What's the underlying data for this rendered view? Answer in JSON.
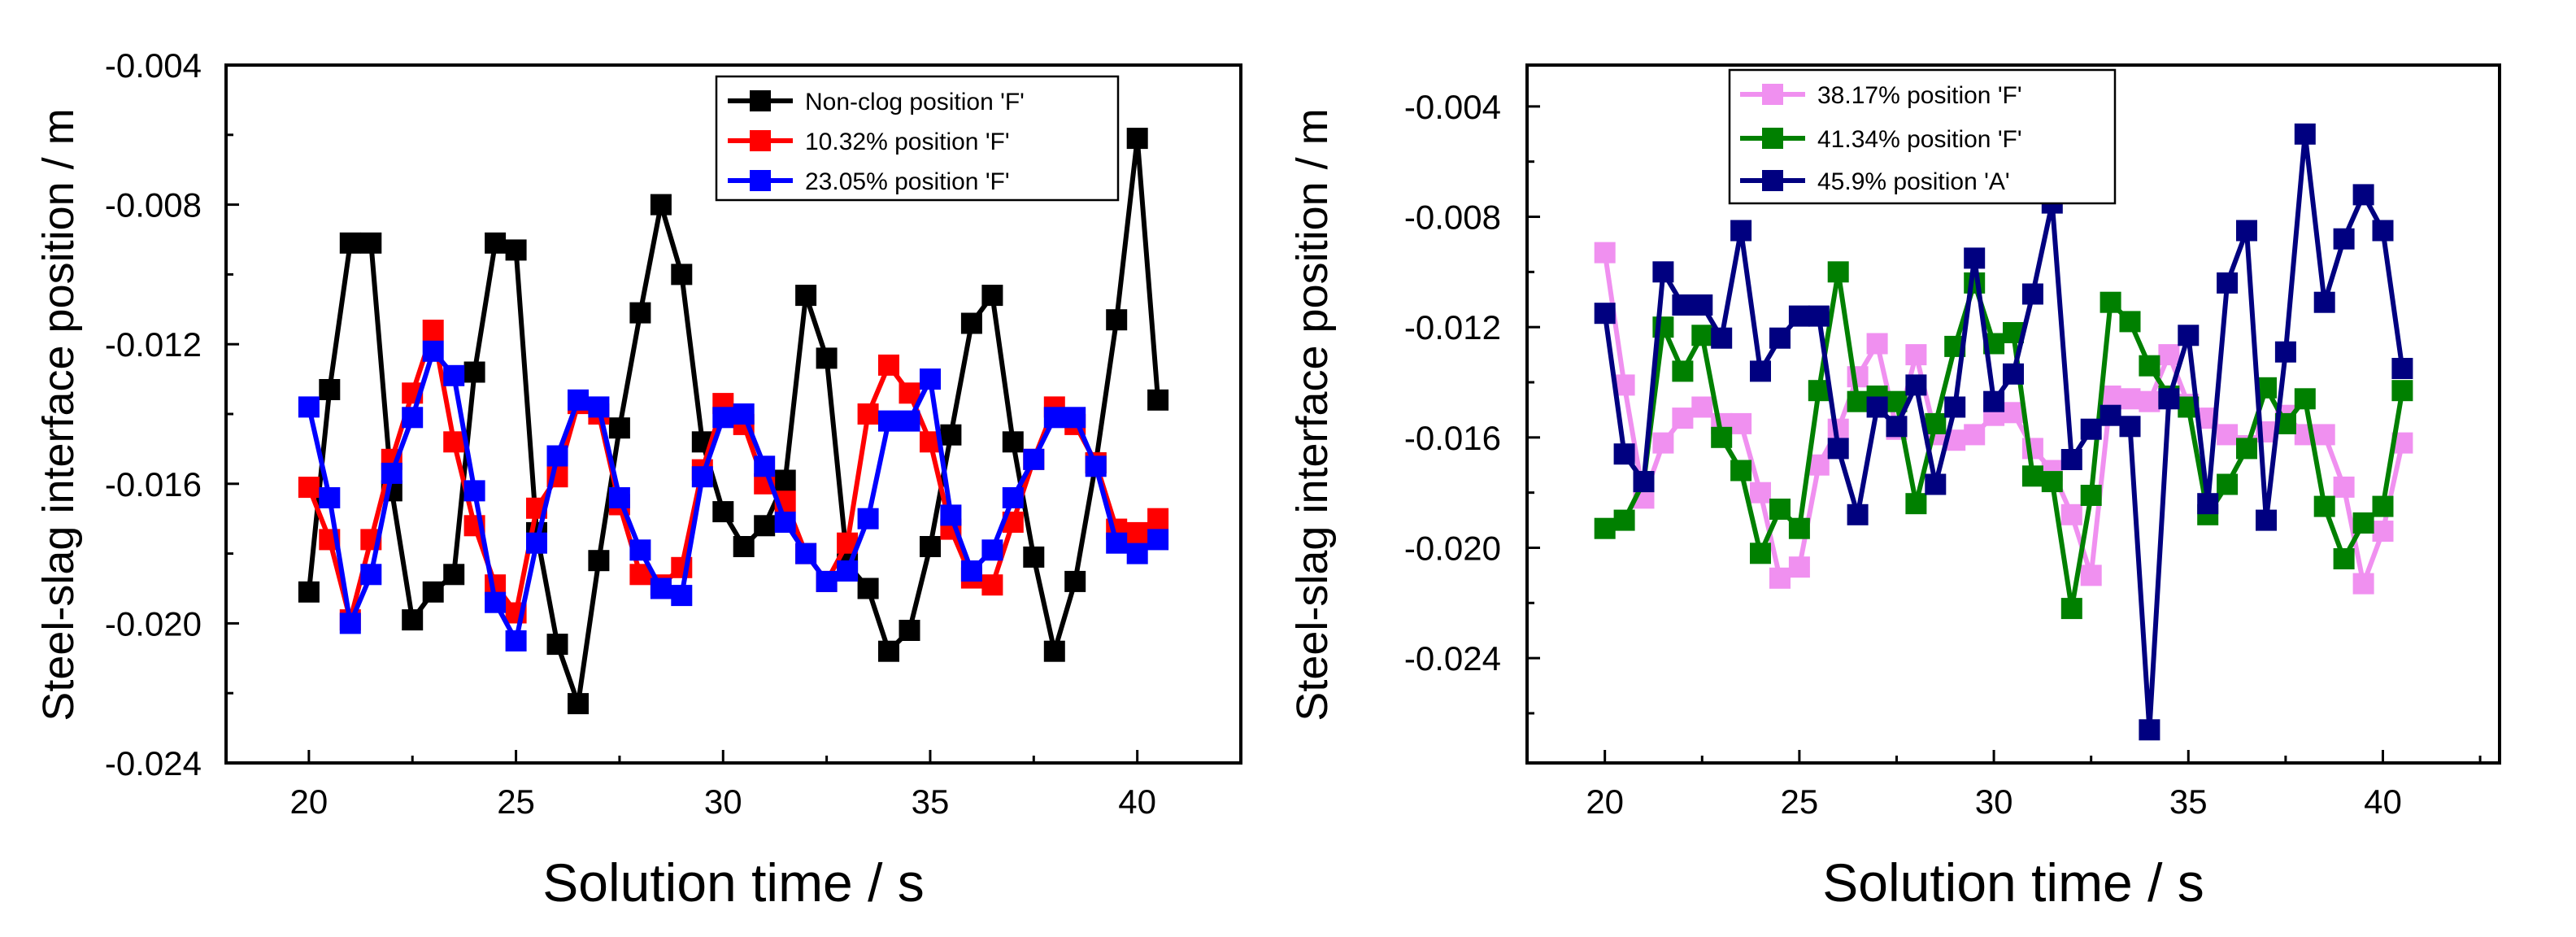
{
  "chart_data": [
    {
      "type": "line",
      "xlabel": "Solution time / s",
      "ylabel": "Steel-slag interface position / m",
      "xlim": [
        18,
        42.5
      ],
      "ylim": [
        -0.024,
        -0.004
      ],
      "xticks": [
        20,
        25,
        30,
        35,
        40
      ],
      "xtick_labels": [
        "20",
        "25",
        "30",
        "35",
        "40"
      ],
      "yticks": [
        -0.004,
        -0.008,
        -0.012,
        -0.016,
        -0.02,
        -0.024
      ],
      "ytick_labels": [
        "-0.004",
        "-0.008",
        "-0.012",
        "-0.016",
        "-0.020",
        "-0.024"
      ],
      "legend_position": "top-right",
      "x": [
        20,
        20.5,
        21,
        21.5,
        22,
        22.5,
        23,
        23.5,
        24,
        24.5,
        25,
        25.5,
        26,
        26.5,
        27,
        27.5,
        28,
        28.5,
        29,
        29.5,
        30,
        30.5,
        31,
        31.5,
        32,
        32.5,
        33,
        33.5,
        34,
        34.5,
        35,
        35.5,
        36,
        36.5,
        37,
        37.5,
        38,
        38.5,
        39,
        39.5,
        40,
        40.5
      ],
      "series": [
        {
          "name": "Non-clog position 'F'",
          "color": "#000000",
          "values": [
            -0.0191,
            -0.0133,
            -0.0091,
            -0.0091,
            -0.0162,
            -0.0199,
            -0.0191,
            -0.0186,
            -0.0128,
            -0.0091,
            -0.0093,
            -0.0174,
            -0.0206,
            -0.0223,
            -0.0182,
            -0.0144,
            -0.0111,
            -0.008,
            -0.01,
            -0.0148,
            -0.0168,
            -0.0178,
            -0.0172,
            -0.0159,
            -0.0106,
            -0.0124,
            -0.0183,
            -0.019,
            -0.0208,
            -0.0202,
            -0.0178,
            -0.0146,
            -0.0114,
            -0.0106,
            -0.0148,
            -0.0181,
            -0.0208,
            -0.0188,
            -0.0154,
            -0.0113,
            -0.0061,
            -0.0136
          ]
        },
        {
          "name": "10.32% position 'F'",
          "color": "#ff0000",
          "values": [
            -0.0161,
            -0.0176,
            -0.0199,
            -0.0176,
            -0.0153,
            -0.0134,
            -0.0116,
            -0.0148,
            -0.0172,
            -0.0189,
            -0.0197,
            -0.0167,
            -0.0158,
            -0.0137,
            -0.014,
            -0.0166,
            -0.0186,
            -0.0189,
            -0.0184,
            -0.0156,
            -0.0137,
            -0.0143,
            -0.016,
            -0.0165,
            -0.018,
            -0.0188,
            -0.0177,
            -0.014,
            -0.0126,
            -0.0134,
            -0.0148,
            -0.0173,
            -0.0187,
            -0.0189,
            -0.0171,
            -0.0153,
            -0.0138,
            -0.0143,
            -0.0154,
            -0.0173,
            -0.0174,
            -0.017
          ]
        },
        {
          "name": "23.05% position 'F'",
          "color": "#0000ff",
          "values": [
            -0.0138,
            -0.0164,
            -0.02,
            -0.0186,
            -0.0157,
            -0.0141,
            -0.0122,
            -0.0129,
            -0.0162,
            -0.0194,
            -0.0205,
            -0.0177,
            -0.0152,
            -0.0136,
            -0.0138,
            -0.0164,
            -0.0179,
            -0.019,
            -0.0192,
            -0.0158,
            -0.0141,
            -0.014,
            -0.0155,
            -0.0171,
            -0.018,
            -0.0188,
            -0.0185,
            -0.017,
            -0.0142,
            -0.0142,
            -0.013,
            -0.0169,
            -0.0185,
            -0.0179,
            -0.0164,
            -0.0153,
            -0.0141,
            -0.0141,
            -0.0155,
            -0.0177,
            -0.018,
            -0.0176
          ]
        }
      ]
    },
    {
      "type": "line",
      "xlabel": "Solution time / s",
      "ylabel": "Steel-slag interface position / m",
      "xlim": [
        18,
        43
      ],
      "ylim": [
        -0.0278,
        -0.0025
      ],
      "xticks": [
        20,
        25,
        30,
        35,
        40
      ],
      "xtick_labels": [
        "20",
        "25",
        "30",
        "35",
        "40"
      ],
      "yticks": [
        -0.004,
        -0.008,
        -0.012,
        -0.016,
        -0.02,
        -0.024
      ],
      "ytick_labels": [
        "-0.004",
        "-0.008",
        "-0.012",
        "-0.016",
        "-0.020",
        "-0.024"
      ],
      "legend_position": "top-left",
      "x": [
        20,
        20.5,
        21,
        21.5,
        22,
        22.5,
        23,
        23.5,
        24,
        24.5,
        25,
        25.5,
        26,
        26.5,
        27,
        27.5,
        28,
        28.5,
        29,
        29.5,
        30,
        30.5,
        31,
        31.5,
        32,
        32.5,
        33,
        33.5,
        34,
        34.5,
        35,
        35.5,
        36,
        36.5,
        37,
        37.5,
        38,
        38.5,
        39,
        39.5,
        40,
        40.5
      ],
      "series": [
        {
          "name": "38.17% position 'F'",
          "color": "#f090f0",
          "values": [
            -0.0093,
            -0.0141,
            -0.0182,
            -0.0162,
            -0.0153,
            -0.0149,
            -0.0155,
            -0.0155,
            -0.018,
            -0.0211,
            -0.0207,
            -0.017,
            -0.0157,
            -0.0138,
            -0.0126,
            -0.0157,
            -0.013,
            -0.0159,
            -0.0161,
            -0.0159,
            -0.0152,
            -0.0151,
            -0.0164,
            -0.0172,
            -0.0188,
            -0.021,
            -0.0145,
            -0.0146,
            -0.0147,
            -0.013,
            -0.0148,
            -0.0153,
            -0.0159,
            -0.0163,
            -0.0158,
            -0.0152,
            -0.0159,
            -0.0159,
            -0.0178,
            -0.0213,
            -0.0194,
            -0.0162
          ]
        },
        {
          "name": "41.34% position 'F'",
          "color": "#008000",
          "values": [
            -0.0193,
            -0.019,
            -0.0176,
            -0.012,
            -0.0136,
            -0.0123,
            -0.016,
            -0.0172,
            -0.0202,
            -0.0186,
            -0.0193,
            -0.0143,
            -0.01,
            -0.0147,
            -0.0145,
            -0.0147,
            -0.0184,
            -0.0155,
            -0.0127,
            -0.0104,
            -0.0126,
            -0.0122,
            -0.0174,
            -0.0176,
            -0.0222,
            -0.0181,
            -0.0111,
            -0.0118,
            -0.0134,
            -0.0145,
            -0.0149,
            -0.0188,
            -0.0177,
            -0.0164,
            -0.0142,
            -0.0155,
            -0.0146,
            -0.0185,
            -0.0204,
            -0.0191,
            -0.0185,
            -0.0143
          ]
        },
        {
          "name": "45.9% position 'A'",
          "color": "#000080",
          "values": [
            -0.0115,
            -0.0166,
            -0.0176,
            -0.01,
            -0.0112,
            -0.0112,
            -0.0124,
            -0.0085,
            -0.0136,
            -0.0124,
            -0.0116,
            -0.0116,
            -0.0164,
            -0.0188,
            -0.0149,
            -0.0156,
            -0.0141,
            -0.0177,
            -0.0149,
            -0.0095,
            -0.0147,
            -0.0137,
            -0.0108,
            -0.0075,
            -0.0168,
            -0.0157,
            -0.0152,
            -0.0156,
            -0.0266,
            -0.0146,
            -0.0123,
            -0.0184,
            -0.0104,
            -0.0085,
            -0.019,
            -0.0129,
            -0.005,
            -0.0111,
            -0.0088,
            -0.0072,
            -0.0085,
            -0.0135
          ]
        }
      ]
    }
  ]
}
